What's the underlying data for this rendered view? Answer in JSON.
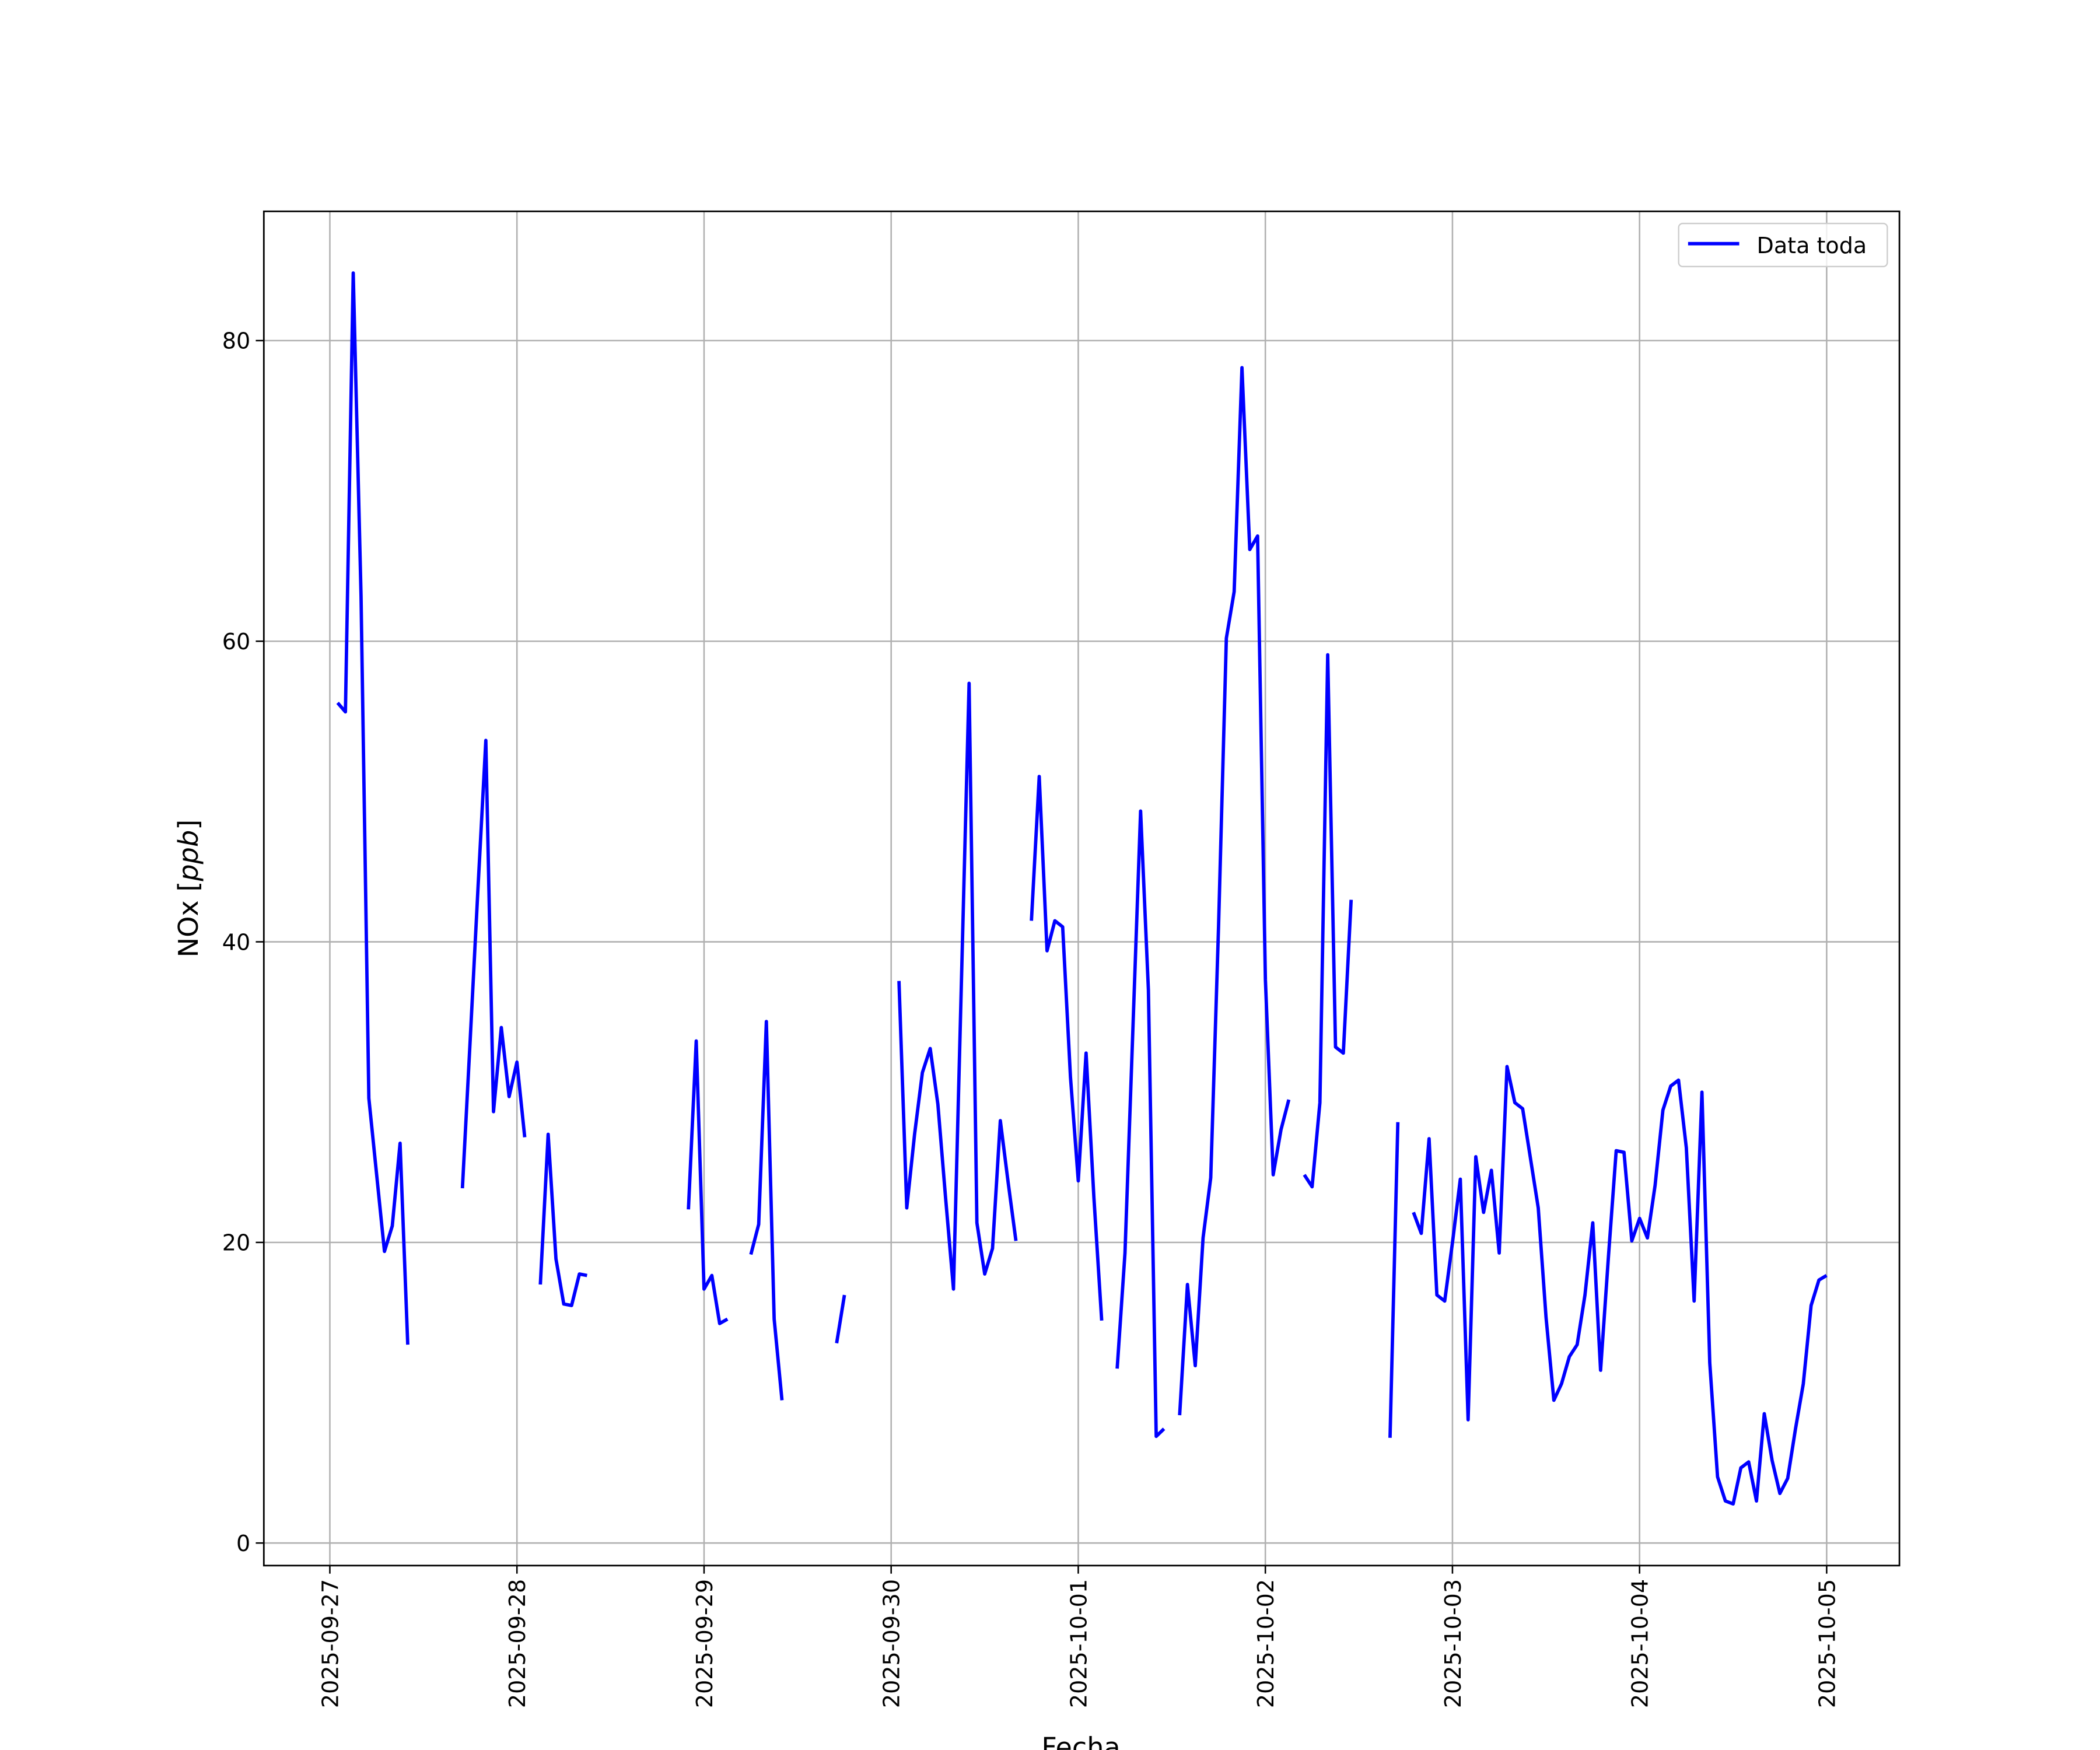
{
  "chart_data": {
    "type": "line",
    "title": "",
    "xlabel": "Fecha",
    "ylabel": "NOx [",
    "ylabel_unit": "ppb",
    "ylabel_close": "]",
    "xlim": [
      "2025-09-26T15:32",
      "2025-10-05T09:20"
    ],
    "ylim": [
      -1.5,
      88.6
    ],
    "grid": true,
    "legend_placement": "top-right",
    "colors": {
      "series": "#0000ff",
      "grid": "#b0b0b0",
      "axes": "#000000"
    },
    "x_ticks": [
      "2025-09-27",
      "2025-09-28",
      "2025-09-29",
      "2025-09-30",
      "2025-10-01",
      "2025-10-02",
      "2025-10-03",
      "2025-10-04",
      "2025-10-05"
    ],
    "y_ticks": [
      0,
      20,
      40,
      60,
      80
    ],
    "series": [
      {
        "name": "Data toda",
        "segments": [
          [
            [
              "2025-09-27T01:00",
              55.9
            ],
            [
              "2025-09-27T02:00",
              55.3
            ],
            [
              "2025-09-27T03:00",
              84.5
            ],
            [
              "2025-09-27T04:00",
              63.0
            ],
            [
              "2025-09-27T05:00",
              29.6
            ],
            [
              "2025-09-27T06:00",
              24.5
            ],
            [
              "2025-09-27T07:00",
              19.4
            ],
            [
              "2025-09-27T08:00",
              21.1
            ],
            [
              "2025-09-27T09:00",
              26.6
            ],
            [
              "2025-09-27T10:00",
              13.2
            ]
          ],
          [
            [
              "2025-09-27T17:00",
              23.6
            ],
            [
              "2025-09-27T18:00",
              33.5
            ],
            [
              "2025-09-27T19:00",
              43.6
            ],
            [
              "2025-09-27T20:00",
              53.4
            ],
            [
              "2025-09-27T21:00",
              28.7
            ],
            [
              "2025-09-27T22:00",
              34.3
            ],
            [
              "2025-09-27T23:00",
              29.7
            ],
            [
              "2025-09-28T00:00",
              32.0
            ],
            [
              "2025-09-28T01:00",
              27.0
            ]
          ],
          [
            [
              "2025-09-28T03:00",
              17.2
            ],
            [
              "2025-09-28T04:00",
              27.2
            ],
            [
              "2025-09-28T05:00",
              18.9
            ],
            [
              "2025-09-28T06:00",
              15.9
            ],
            [
              "2025-09-28T07:00",
              15.8
            ],
            [
              "2025-09-28T08:00",
              17.9
            ],
            [
              "2025-09-28T09:00",
              17.8
            ]
          ],
          [
            [
              "2025-09-28T22:00",
              22.2
            ],
            [
              "2025-09-28T23:00",
              33.4
            ],
            [
              "2025-09-29T00:00",
              16.9
            ],
            [
              "2025-09-29T01:00",
              17.8
            ],
            [
              "2025-09-29T02:00",
              14.6
            ],
            [
              "2025-09-29T03:00",
              14.9
            ]
          ],
          [
            [
              "2025-09-29T06:00",
              19.2
            ],
            [
              "2025-09-29T07:00",
              21.2
            ],
            [
              "2025-09-29T08:00",
              34.7
            ],
            [
              "2025-09-29T09:00",
              14.9
            ],
            [
              "2025-09-29T10:00",
              9.5
            ]
          ],
          [
            [
              "2025-09-29T17:00",
              13.3
            ],
            [
              "2025-09-29T18:00",
              16.5
            ]
          ],
          [
            [
              "2025-09-30T01:00",
              37.4
            ],
            [
              "2025-09-30T02:00",
              22.3
            ],
            [
              "2025-09-30T03:00",
              27.2
            ],
            [
              "2025-09-30T04:00",
              31.3
            ],
            [
              "2025-09-30T05:00",
              32.9
            ],
            [
              "2025-09-30T06:00",
              29.2
            ],
            [
              "2025-09-30T07:00",
              22.9
            ],
            [
              "2025-09-30T08:00",
              16.9
            ],
            [
              "2025-09-30T09:00",
              37.0
            ],
            [
              "2025-09-30T10:00",
              57.2
            ],
            [
              "2025-09-30T11:00",
              21.3
            ],
            [
              "2025-09-30T12:00",
              17.9
            ],
            [
              "2025-09-30T13:00",
              19.6
            ],
            [
              "2025-09-30T14:00",
              28.1
            ],
            [
              "2025-09-30T15:00",
              24.0
            ],
            [
              "2025-09-30T16:00",
              20.1
            ]
          ],
          [
            [
              "2025-09-30T18:00",
              41.4
            ],
            [
              "2025-09-30T19:00",
              51.0
            ],
            [
              "2025-09-30T20:00",
              39.4
            ],
            [
              "2025-09-30T21:00",
              41.4
            ],
            [
              "2025-09-30T22:00",
              41.0
            ],
            [
              "2025-09-30T23:00",
              31.0
            ],
            [
              "2025-10-01T00:00",
              24.1
            ],
            [
              "2025-10-01T01:00",
              32.6
            ],
            [
              "2025-10-01T02:00",
              23.0
            ],
            [
              "2025-10-01T03:00",
              14.8
            ]
          ],
          [
            [
              "2025-10-01T05:00",
              11.6
            ],
            [
              "2025-10-01T06:00",
              19.3
            ],
            [
              "2025-10-01T07:00",
              34.0
            ],
            [
              "2025-10-01T08:00",
              48.7
            ],
            [
              "2025-10-01T09:00",
              36.8
            ],
            [
              "2025-10-01T10:00",
              7.1
            ],
            [
              "2025-10-01T11:00",
              7.6
            ]
          ],
          [
            [
              "2025-10-01T13:00",
              8.5
            ],
            [
              "2025-10-01T14:00",
              17.2
            ],
            [
              "2025-10-01T15:00",
              11.8
            ],
            [
              "2025-10-01T16:00",
              20.3
            ],
            [
              "2025-10-01T17:00",
              24.3
            ],
            [
              "2025-10-01T18:00",
              41.0
            ],
            [
              "2025-10-01T19:00",
              60.2
            ],
            [
              "2025-10-01T20:00",
              63.3
            ],
            [
              "2025-10-01T21:00",
              78.2
            ],
            [
              "2025-10-01T22:00",
              66.1
            ],
            [
              "2025-10-01T23:00",
              67.0
            ],
            [
              "2025-10-02T00:00",
              37.5
            ],
            [
              "2025-10-02T01:00",
              24.5
            ],
            [
              "2025-10-02T02:00",
              27.5
            ],
            [
              "2025-10-02T03:00",
              29.5
            ]
          ],
          [
            [
              "2025-10-02T05:00",
              24.5
            ],
            [
              "2025-10-02T06:00",
              23.7
            ],
            [
              "2025-10-02T07:00",
              29.3
            ],
            [
              "2025-10-02T08:00",
              59.1
            ],
            [
              "2025-10-02T09:00",
              33.0
            ],
            [
              "2025-10-02T10:00",
              32.6
            ],
            [
              "2025-10-02T11:00",
              42.8
            ]
          ],
          [
            [
              "2025-10-02T16:00",
              7.0
            ],
            [
              "2025-10-02T17:00",
              28.0
            ]
          ],
          [
            [
              "2025-10-02T19:00",
              22.0
            ],
            [
              "2025-10-02T20:00",
              20.6
            ],
            [
              "2025-10-02T21:00",
              26.9
            ],
            [
              "2025-10-02T22:00",
              16.5
            ],
            [
              "2025-10-02T23:00",
              16.1
            ],
            [
              "2025-10-03T00:00",
              20.0
            ],
            [
              "2025-10-03T01:00",
              24.2
            ],
            [
              "2025-10-03T02:00",
              8.2
            ],
            [
              "2025-10-03T03:00",
              25.7
            ],
            [
              "2025-10-03T04:00",
              22.0
            ],
            [
              "2025-10-03T05:00",
              24.8
            ],
            [
              "2025-10-03T06:00",
              19.3
            ],
            [
              "2025-10-03T07:00",
              31.7
            ],
            [
              "2025-10-03T08:00",
              29.3
            ],
            [
              "2025-10-03T09:00",
              28.9
            ],
            [
              "2025-10-03T10:00",
              25.6
            ],
            [
              "2025-10-03T11:00",
              22.3
            ],
            [
              "2025-10-03T12:00",
              15.0
            ],
            [
              "2025-10-03T13:00",
              9.5
            ],
            [
              "2025-10-03T14:00",
              10.6
            ],
            [
              "2025-10-03T15:00",
              12.4
            ],
            [
              "2025-10-03T16:00",
              13.2
            ],
            [
              "2025-10-03T17:00",
              16.5
            ],
            [
              "2025-10-03T18:00",
              21.3
            ],
            [
              "2025-10-03T19:00",
              11.5
            ],
            [
              "2025-10-03T20:00",
              19.0
            ],
            [
              "2025-10-03T21:00",
              26.1
            ],
            [
              "2025-10-03T22:00",
              26.0
            ],
            [
              "2025-10-03T23:00",
              20.1
            ],
            [
              "2025-10-04T00:00",
              21.6
            ],
            [
              "2025-10-04T01:00",
              20.3
            ],
            [
              "2025-10-04T02:00",
              23.8
            ],
            [
              "2025-10-04T03:00",
              28.8
            ],
            [
              "2025-10-04T04:00",
              30.4
            ],
            [
              "2025-10-04T05:00",
              30.8
            ],
            [
              "2025-10-04T06:00",
              26.3
            ],
            [
              "2025-10-04T07:00",
              16.1
            ],
            [
              "2025-10-04T08:00",
              30.0
            ],
            [
              "2025-10-04T09:00",
              12.0
            ],
            [
              "2025-10-04T10:00",
              4.4
            ],
            [
              "2025-10-04T11:00",
              2.8
            ],
            [
              "2025-10-04T12:00",
              2.6
            ],
            [
              "2025-10-04T13:00",
              5.0
            ],
            [
              "2025-10-04T14:00",
              5.4
            ],
            [
              "2025-10-04T15:00",
              2.8
            ],
            [
              "2025-10-04T16:00",
              8.6
            ],
            [
              "2025-10-04T17:00",
              5.5
            ],
            [
              "2025-10-04T18:00",
              3.3
            ],
            [
              "2025-10-04T19:00",
              4.3
            ],
            [
              "2025-10-04T20:00",
              7.6
            ],
            [
              "2025-10-04T21:00",
              10.6
            ],
            [
              "2025-10-04T22:00",
              15.8
            ],
            [
              "2025-10-04T23:00",
              17.5
            ],
            [
              "2025-10-05T00:00",
              17.8
            ]
          ]
        ]
      }
    ]
  }
}
